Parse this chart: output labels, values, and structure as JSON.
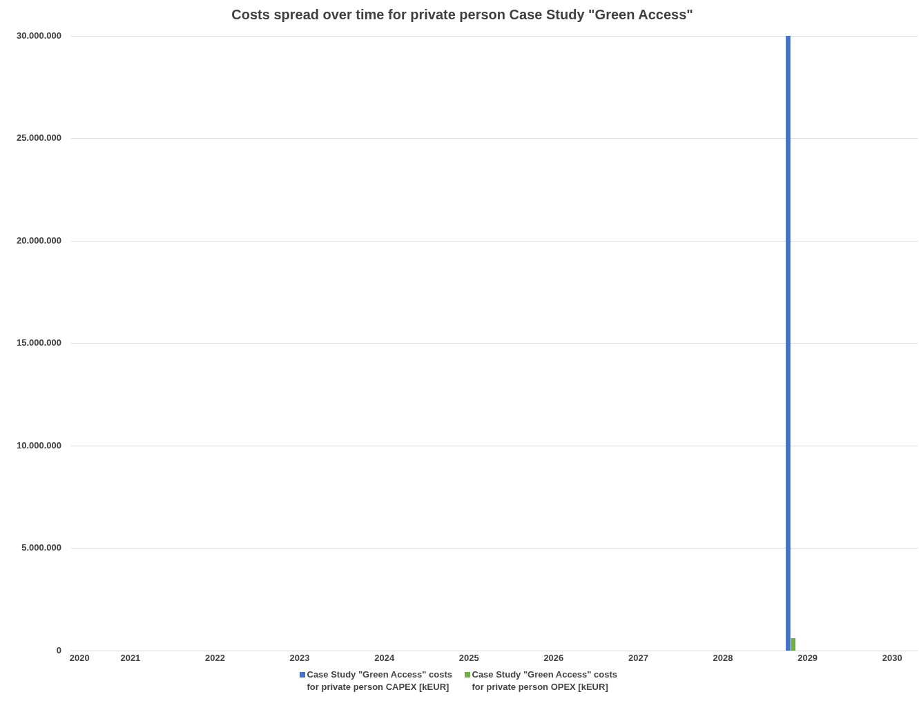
{
  "chart_data": {
    "type": "bar",
    "title": "Costs spread over time for private person Case Study \"Green Access\"",
    "xlim": [
      2020.3,
      2030.3
    ],
    "xticks": [
      {
        "value": 2020.4,
        "label": "2020"
      },
      2021,
      2022,
      2023,
      2024,
      2025,
      2026,
      2027,
      2028,
      2029,
      2030
    ],
    "ylim": [
      0,
      30000000
    ],
    "yticks": [
      0,
      {
        "value": 5000000,
        "label": "5.000.000"
      },
      {
        "value": 10000000,
        "label": "10.000.000"
      },
      {
        "value": 15000000,
        "label": "15.000.000"
      },
      {
        "value": 20000000,
        "label": "20.000.000"
      },
      {
        "value": 25000000,
        "label": "25.000.000"
      },
      {
        "value": 30000000,
        "label": "30.000.000"
      }
    ],
    "grid": "y",
    "legend": "bottom",
    "series": [
      {
        "name": "Case Study \"Green Access\" costs for private person CAPEX [kEUR]",
        "color": "#4472c4",
        "x": [
          2028.77
        ],
        "values": [
          30000000
        ]
      },
      {
        "name": "Case Study \"Green Access\" costs for private person OPEX [kEUR]",
        "color": "#70ad47",
        "x": [
          2028.83
        ],
        "values": [
          600000
        ]
      }
    ]
  }
}
